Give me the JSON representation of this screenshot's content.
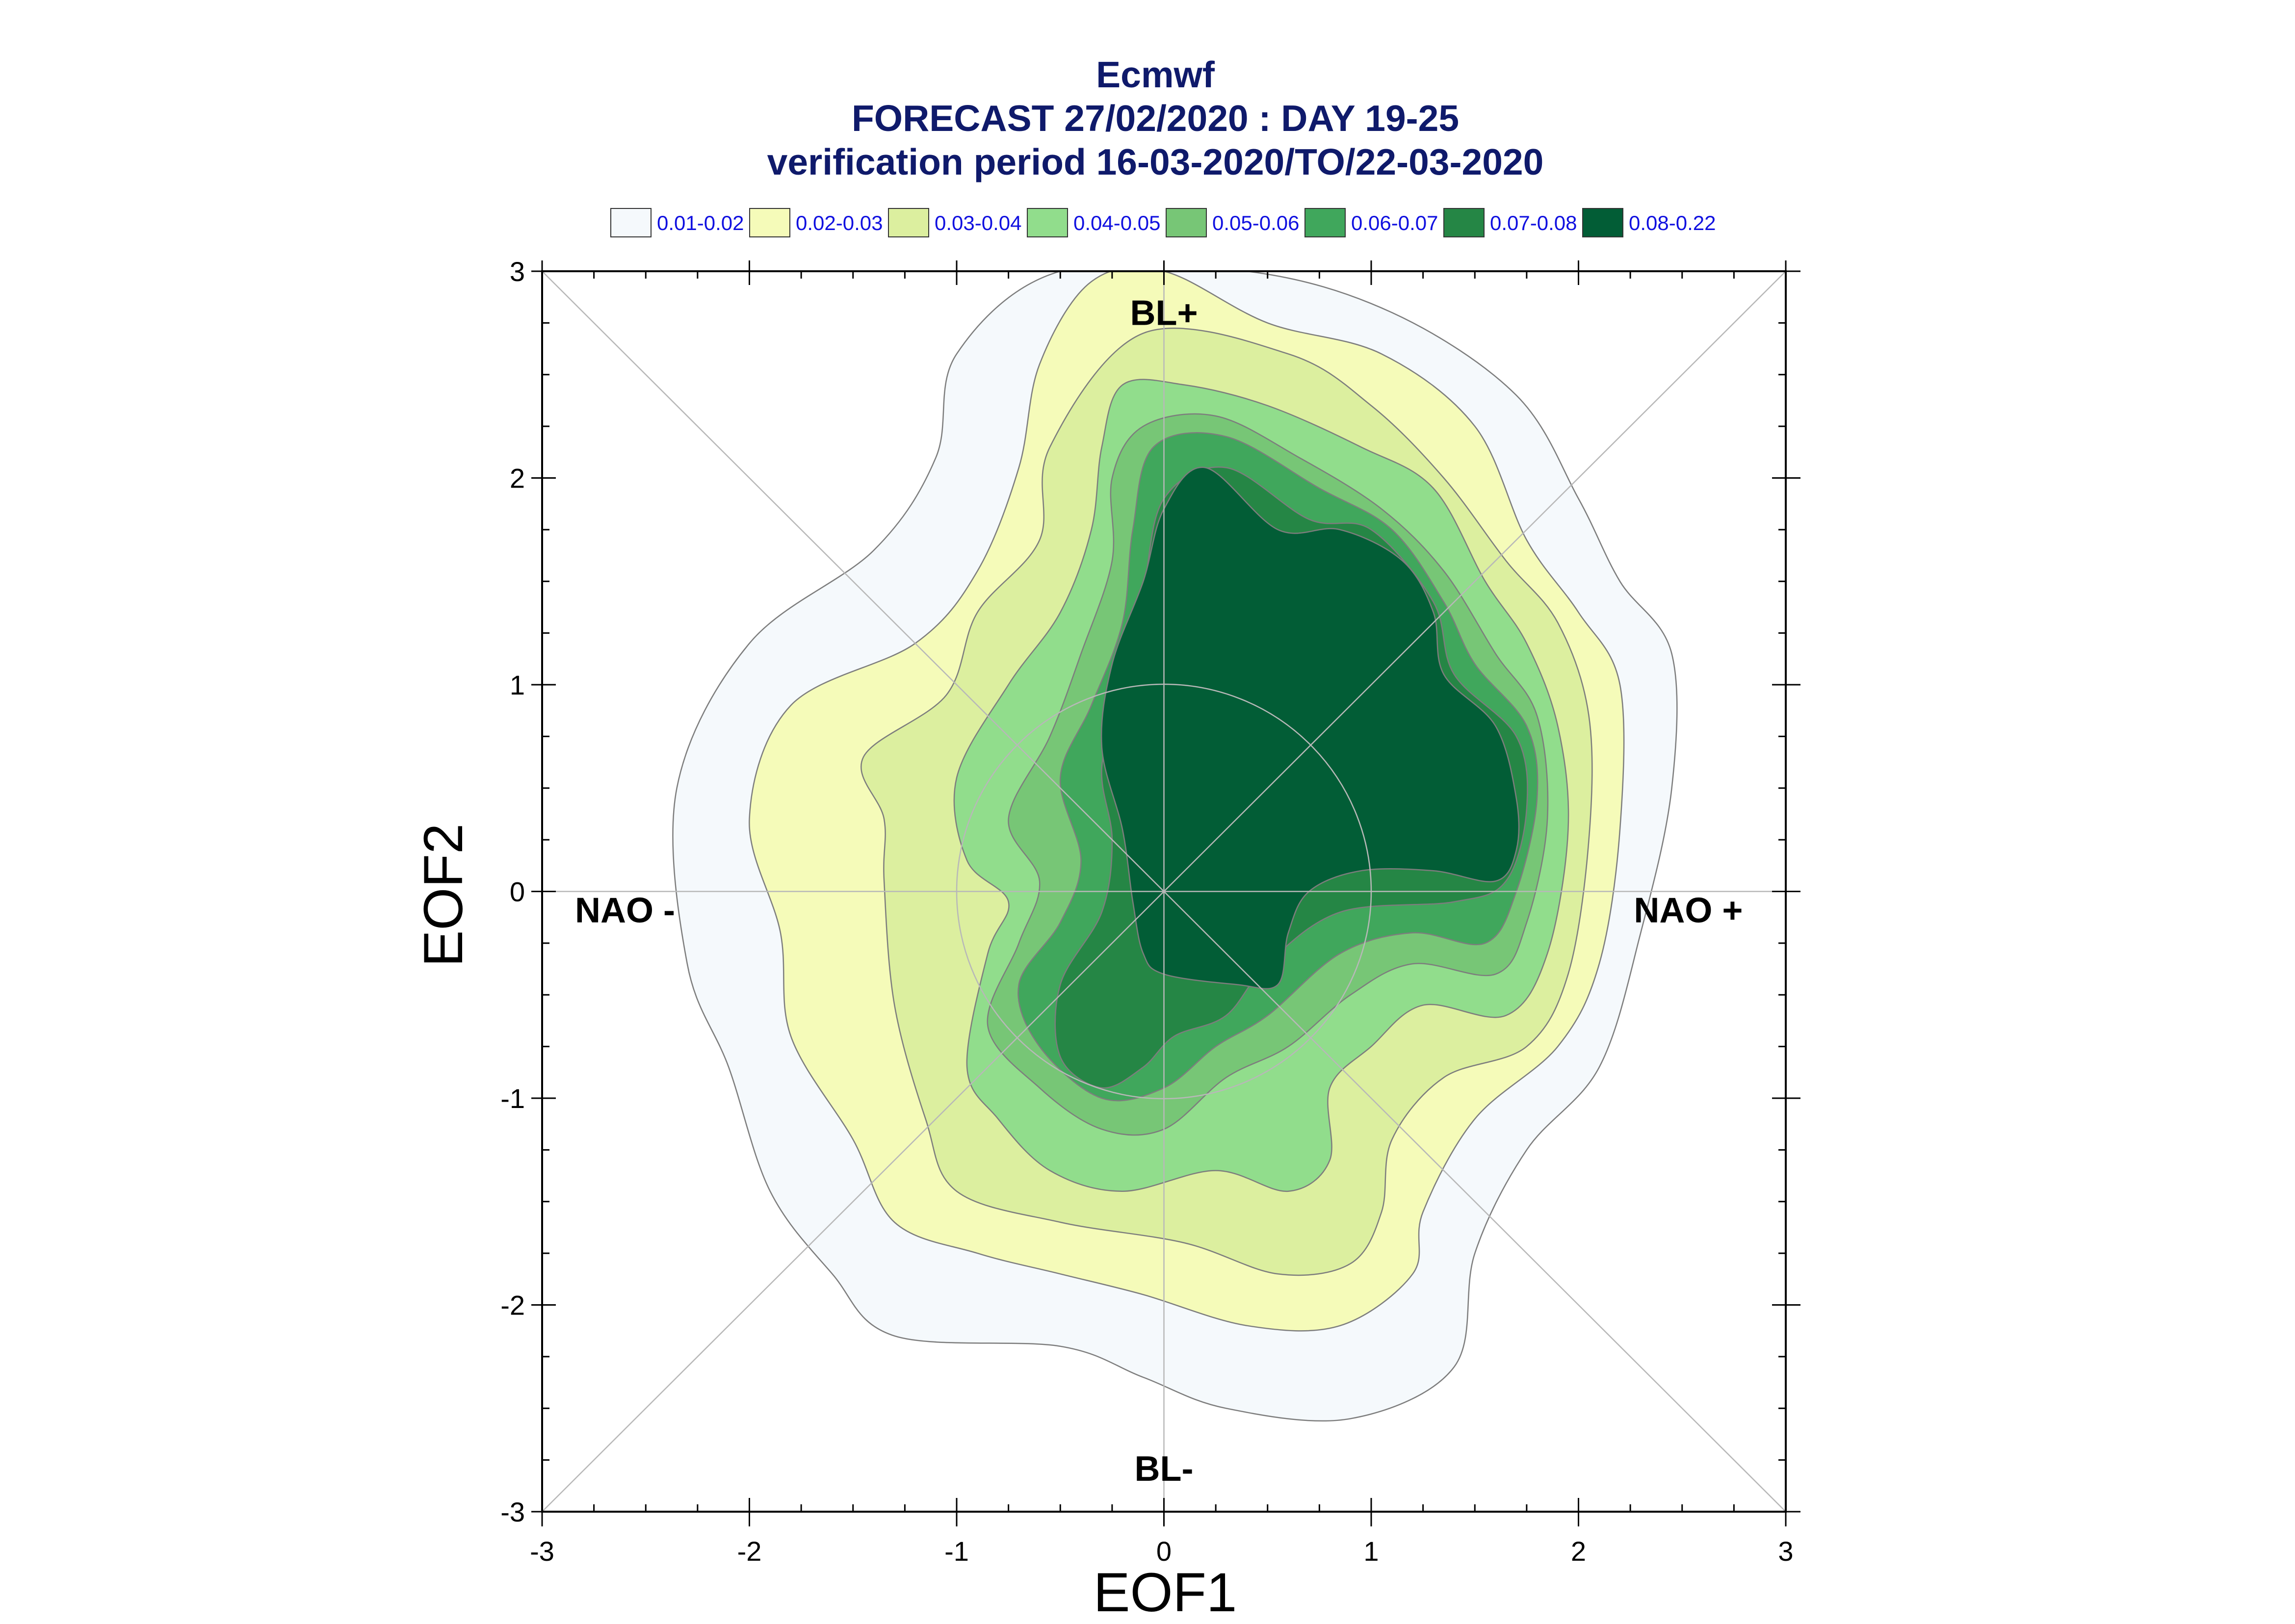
{
  "title": {
    "line1": "Ecmwf",
    "line2": "FORECAST 27/02/2020 : DAY 19-25",
    "line3": "verification period 16-03-2020/TO/22-03-2020"
  },
  "chart_data": {
    "type": "contour",
    "xlabel": "EOF1",
    "ylabel": "EOF2",
    "xlim": [
      -3,
      3
    ],
    "ylim": [
      -3,
      3
    ],
    "x_ticks": [
      "-3",
      "-2",
      "-1",
      "0",
      "1",
      "2",
      "3"
    ],
    "y_ticks": [
      "-3",
      "-2",
      "-1",
      "0",
      "1",
      "2",
      "3"
    ],
    "grid": false,
    "legend_position": "top",
    "legend": [
      {
        "label": "0.01-0.02",
        "color": "#f5f9fc"
      },
      {
        "label": "0.02-0.03",
        "color": "#f5fbb9"
      },
      {
        "label": "0.03-0.04",
        "color": "#dcef9f"
      },
      {
        "label": "0.04-0.05",
        "color": "#91dd8c"
      },
      {
        "label": "0.05-0.06",
        "color": "#77c676"
      },
      {
        "label": "0.06-0.07",
        "color": "#40a75c"
      },
      {
        "label": "0.07-0.08",
        "color": "#258645"
      },
      {
        "label": "0.08-0.22",
        "color": "#025d36"
      }
    ],
    "region_labels": {
      "top": "BL+",
      "bottom": "BL-",
      "left": "NAO -",
      "right": "NAO +"
    },
    "contours": [
      {
        "level": "0.01-0.02",
        "points": [
          [
            -0.5,
            3.0
          ],
          [
            0.4,
            3.0
          ],
          [
            1.1,
            2.8
          ],
          [
            1.7,
            2.4
          ],
          [
            2.0,
            1.9
          ],
          [
            2.2,
            1.5
          ],
          [
            2.45,
            1.15
          ],
          [
            2.45,
            0.5
          ],
          [
            2.3,
            -0.2
          ],
          [
            2.1,
            -0.85
          ],
          [
            1.75,
            -1.25
          ],
          [
            1.5,
            -1.75
          ],
          [
            1.4,
            -2.3
          ],
          [
            0.9,
            -2.55
          ],
          [
            0.3,
            -2.5
          ],
          [
            -0.1,
            -2.35
          ],
          [
            -0.5,
            -2.2
          ],
          [
            -1.3,
            -2.15
          ],
          [
            -1.6,
            -1.85
          ],
          [
            -1.9,
            -1.45
          ],
          [
            -2.1,
            -0.85
          ],
          [
            -2.3,
            -0.35
          ],
          [
            -2.35,
            0.5
          ],
          [
            -2.0,
            1.2
          ],
          [
            -1.4,
            1.65
          ],
          [
            -1.1,
            2.1
          ],
          [
            -1.0,
            2.6
          ]
        ]
      },
      {
        "level": "0.02-0.03",
        "points": [
          [
            -0.35,
            2.95
          ],
          [
            0.0,
            3.0
          ],
          [
            0.5,
            2.75
          ],
          [
            1.05,
            2.6
          ],
          [
            1.5,
            2.25
          ],
          [
            1.75,
            1.7
          ],
          [
            2.0,
            1.35
          ],
          [
            2.2,
            1.0
          ],
          [
            2.2,
            0.3
          ],
          [
            2.1,
            -0.35
          ],
          [
            1.9,
            -0.75
          ],
          [
            1.5,
            -1.1
          ],
          [
            1.25,
            -1.55
          ],
          [
            1.2,
            -1.85
          ],
          [
            0.85,
            -2.1
          ],
          [
            0.4,
            -2.1
          ],
          [
            -0.1,
            -1.95
          ],
          [
            -0.5,
            -1.85
          ],
          [
            -0.9,
            -1.75
          ],
          [
            -1.3,
            -1.6
          ],
          [
            -1.5,
            -1.2
          ],
          [
            -1.8,
            -0.7
          ],
          [
            -1.85,
            -0.2
          ],
          [
            -2.0,
            0.35
          ],
          [
            -1.8,
            0.9
          ],
          [
            -1.2,
            1.2
          ],
          [
            -0.9,
            1.55
          ],
          [
            -0.7,
            2.05
          ],
          [
            -0.6,
            2.55
          ]
        ]
      },
      {
        "level": "0.03-0.04",
        "points": [
          [
            -0.1,
            2.7
          ],
          [
            0.6,
            2.6
          ],
          [
            1.0,
            2.35
          ],
          [
            1.35,
            2.0
          ],
          [
            1.65,
            1.6
          ],
          [
            1.9,
            1.3
          ],
          [
            2.05,
            0.85
          ],
          [
            2.05,
            0.25
          ],
          [
            1.95,
            -0.4
          ],
          [
            1.75,
            -0.75
          ],
          [
            1.35,
            -0.9
          ],
          [
            1.1,
            -1.2
          ],
          [
            1.05,
            -1.55
          ],
          [
            0.9,
            -1.8
          ],
          [
            0.55,
            -1.85
          ],
          [
            0.1,
            -1.7
          ],
          [
            -0.5,
            -1.6
          ],
          [
            -1.0,
            -1.45
          ],
          [
            -1.15,
            -1.1
          ],
          [
            -1.3,
            -0.55
          ],
          [
            -1.35,
            0.05
          ],
          [
            -1.35,
            0.35
          ],
          [
            -1.45,
            0.65
          ],
          [
            -1.05,
            0.95
          ],
          [
            -0.9,
            1.35
          ],
          [
            -0.6,
            1.7
          ],
          [
            -0.55,
            2.15
          ]
        ]
      },
      {
        "level": "0.04-0.05",
        "points": [
          [
            -0.2,
            2.45
          ],
          [
            0.1,
            2.45
          ],
          [
            0.5,
            2.35
          ],
          [
            0.95,
            2.15
          ],
          [
            1.3,
            1.95
          ],
          [
            1.55,
            1.5
          ],
          [
            1.75,
            1.2
          ],
          [
            1.9,
            0.8
          ],
          [
            1.95,
            0.3
          ],
          [
            1.85,
            -0.3
          ],
          [
            1.65,
            -0.6
          ],
          [
            1.25,
            -0.55
          ],
          [
            1.0,
            -0.75
          ],
          [
            0.8,
            -0.95
          ],
          [
            0.8,
            -1.3
          ],
          [
            0.6,
            -1.45
          ],
          [
            0.25,
            -1.35
          ],
          [
            -0.2,
            -1.45
          ],
          [
            -0.55,
            -1.35
          ],
          [
            -0.8,
            -1.1
          ],
          [
            -0.95,
            -0.85
          ],
          [
            -0.85,
            -0.3
          ],
          [
            -0.75,
            -0.05
          ],
          [
            -0.95,
            0.15
          ],
          [
            -1.0,
            0.55
          ],
          [
            -0.75,
            1.0
          ],
          [
            -0.5,
            1.35
          ],
          [
            -0.35,
            1.75
          ],
          [
            -0.3,
            2.15
          ]
        ]
      },
      {
        "level": "0.05-0.06",
        "points": [
          [
            -0.1,
            2.25
          ],
          [
            0.25,
            2.3
          ],
          [
            0.65,
            2.1
          ],
          [
            1.05,
            1.85
          ],
          [
            1.35,
            1.55
          ],
          [
            1.6,
            1.15
          ],
          [
            1.8,
            0.85
          ],
          [
            1.85,
            0.35
          ],
          [
            1.75,
            -0.15
          ],
          [
            1.6,
            -0.4
          ],
          [
            1.2,
            -0.35
          ],
          [
            0.9,
            -0.5
          ],
          [
            0.6,
            -0.75
          ],
          [
            0.3,
            -0.9
          ],
          [
            0.0,
            -1.15
          ],
          [
            -0.3,
            -1.15
          ],
          [
            -0.6,
            -0.95
          ],
          [
            -0.85,
            -0.65
          ],
          [
            -0.7,
            -0.25
          ],
          [
            -0.6,
            0.05
          ],
          [
            -0.75,
            0.35
          ],
          [
            -0.55,
            0.75
          ],
          [
            -0.4,
            1.15
          ],
          [
            -0.25,
            1.6
          ],
          [
            -0.25,
            2.0
          ]
        ]
      },
      {
        "level": "0.06-0.07",
        "points": [
          [
            -0.05,
            2.15
          ],
          [
            0.3,
            2.2
          ],
          [
            0.75,
            1.95
          ],
          [
            1.1,
            1.75
          ],
          [
            1.35,
            1.4
          ],
          [
            1.5,
            1.1
          ],
          [
            1.75,
            0.8
          ],
          [
            1.8,
            0.45
          ],
          [
            1.7,
            0.0
          ],
          [
            1.55,
            -0.25
          ],
          [
            1.2,
            -0.2
          ],
          [
            0.85,
            -0.3
          ],
          [
            0.5,
            -0.6
          ],
          [
            0.25,
            -0.75
          ],
          [
            0.0,
            -0.95
          ],
          [
            -0.3,
            -1.0
          ],
          [
            -0.6,
            -0.75
          ],
          [
            -0.7,
            -0.45
          ],
          [
            -0.5,
            -0.15
          ],
          [
            -0.4,
            0.15
          ],
          [
            -0.5,
            0.55
          ],
          [
            -0.35,
            0.9
          ],
          [
            -0.2,
            1.3
          ],
          [
            -0.15,
            1.75
          ]
        ]
      },
      {
        "level": "0.07-0.08",
        "points": [
          [
            0.0,
            1.9
          ],
          [
            0.3,
            2.05
          ],
          [
            0.7,
            1.8
          ],
          [
            1.0,
            1.75
          ],
          [
            1.3,
            1.4
          ],
          [
            1.4,
            1.05
          ],
          [
            1.7,
            0.75
          ],
          [
            1.75,
            0.4
          ],
          [
            1.65,
            0.05
          ],
          [
            1.4,
            -0.05
          ],
          [
            0.85,
            -0.1
          ],
          [
            0.5,
            -0.35
          ],
          [
            0.3,
            -0.6
          ],
          [
            0.05,
            -0.7
          ],
          [
            -0.1,
            -0.85
          ],
          [
            -0.3,
            -0.95
          ],
          [
            -0.5,
            -0.8
          ],
          [
            -0.5,
            -0.45
          ],
          [
            -0.3,
            -0.1
          ],
          [
            -0.25,
            0.25
          ],
          [
            -0.3,
            0.6
          ],
          [
            -0.2,
            1.0
          ],
          [
            -0.1,
            1.45
          ]
        ]
      },
      {
        "level": "0.08-0.22",
        "points": [
          [
            0.0,
            1.85
          ],
          [
            0.2,
            2.05
          ],
          [
            0.55,
            1.75
          ],
          [
            0.85,
            1.75
          ],
          [
            1.15,
            1.6
          ],
          [
            1.3,
            1.35
          ],
          [
            1.35,
            1.05
          ],
          [
            1.6,
            0.8
          ],
          [
            1.7,
            0.45
          ],
          [
            1.7,
            0.2
          ],
          [
            1.6,
            0.05
          ],
          [
            1.3,
            0.1
          ],
          [
            0.95,
            0.1
          ],
          [
            0.7,
            0.0
          ],
          [
            0.6,
            -0.2
          ],
          [
            0.55,
            -0.45
          ],
          [
            0.35,
            -0.45
          ],
          [
            0.0,
            -0.4
          ],
          [
            -0.1,
            -0.3
          ],
          [
            -0.15,
            -0.05
          ],
          [
            -0.2,
            0.3
          ],
          [
            -0.3,
            0.7
          ],
          [
            -0.25,
            1.1
          ],
          [
            -0.1,
            1.5
          ]
        ]
      }
    ]
  }
}
